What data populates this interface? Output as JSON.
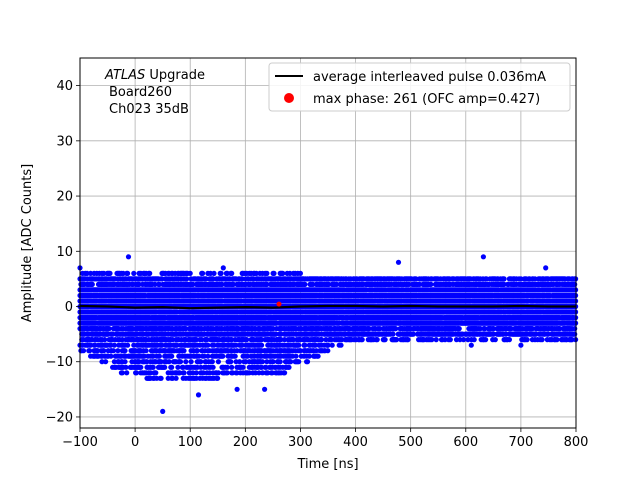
{
  "chart_data": {
    "type": "scatter",
    "title": "",
    "xlabel": "Time [ns]",
    "ylabel": "Amplitude [ADC Counts]",
    "xlim": [
      -100,
      800
    ],
    "ylim": [
      -22,
      45
    ],
    "xticks": [
      -100,
      0,
      100,
      200,
      300,
      400,
      500,
      600,
      700,
      800
    ],
    "yticks": [
      -20,
      -10,
      0,
      10,
      20,
      30,
      40
    ],
    "grid": true,
    "legend_position": "top-right",
    "annotation": {
      "experiment": "ATLAS",
      "experiment_suffix": " Upgrade",
      "board": "Board260",
      "channel": "Ch023 35dB"
    },
    "series": [
      {
        "name": "average interleaved pulse 0.036mA",
        "kind": "line",
        "color": "#000000",
        "x": [
          -100,
          -50,
          0,
          50,
          100,
          150,
          200,
          250,
          300,
          350,
          400,
          450,
          500,
          550,
          600,
          650,
          700,
          750,
          800
        ],
        "y": [
          0.1,
          0.0,
          -0.2,
          -0.1,
          -0.3,
          -0.2,
          -0.1,
          -0.2,
          0.0,
          0.1,
          0.1,
          0.0,
          0.1,
          0.0,
          0.0,
          0.0,
          0.1,
          0.0,
          0.0
        ]
      },
      {
        "name": "max phase: 261 (OFC amp=0.427)",
        "kind": "marker",
        "color": "#ff0000",
        "x": [
          261
        ],
        "y": [
          0.427
        ]
      },
      {
        "name": "",
        "kind": "scatter",
        "color": "#0000ff",
        "envelope_time": [
          -100,
          -50,
          0,
          50,
          100,
          150,
          200,
          250,
          300,
          350,
          400,
          450,
          500,
          550,
          600,
          650,
          700,
          750,
          800
        ],
        "envelope_upper": [
          7,
          6,
          6,
          6,
          6,
          6,
          6,
          6,
          6,
          5,
          5,
          5,
          5,
          5,
          5,
          5,
          5,
          5,
          5
        ],
        "envelope_lower": [
          -8,
          -11,
          -13,
          -14,
          -13,
          -13,
          -12,
          -13,
          -11,
          -8,
          -6,
          -6,
          -6,
          -6,
          -6,
          -6,
          -6,
          -6,
          -6
        ],
        "outliers": [
          {
            "x": -12,
            "y": 9
          },
          {
            "x": 50,
            "y": -19
          },
          {
            "x": 115,
            "y": -16
          },
          {
            "x": 185,
            "y": -15
          },
          {
            "x": 235,
            "y": -15
          },
          {
            "x": 632,
            "y": 9
          },
          {
            "x": 478,
            "y": 8
          },
          {
            "x": 160,
            "y": 7
          },
          {
            "x": 745,
            "y": 7
          },
          {
            "x": 610,
            "y": -7
          },
          {
            "x": 700,
            "y": -7
          },
          {
            "x": 350,
            "y": -7
          }
        ]
      }
    ]
  }
}
